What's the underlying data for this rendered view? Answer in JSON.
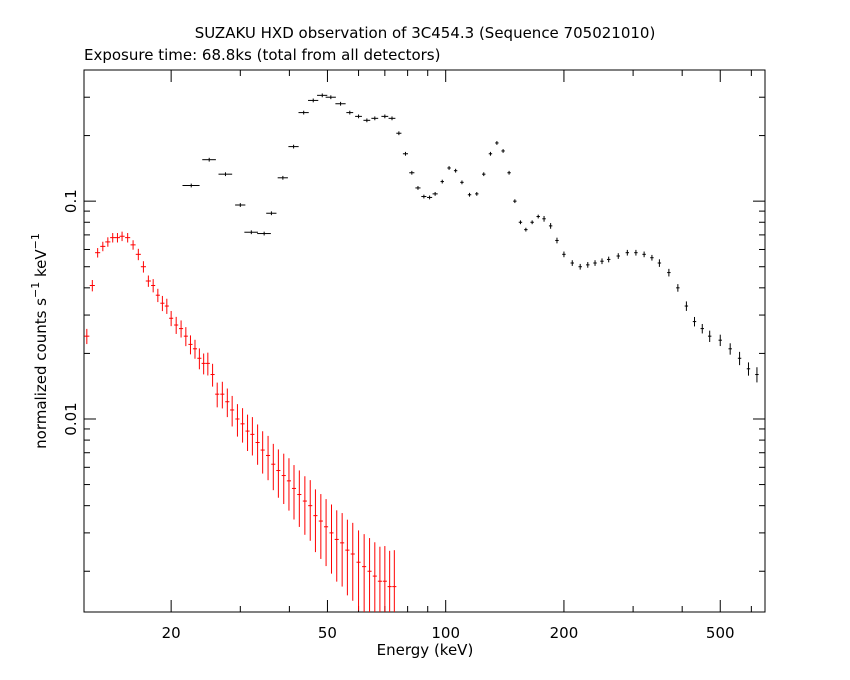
{
  "chart_data": {
    "type": "scatter",
    "title": "SUZAKU HXD observation of 3C454.3 (Sequence 705021010)",
    "subtitle": "Exposure time: 68.8ks (total from all detectors)",
    "xlabel": "Energy (keV)",
    "ylabel": {
      "text": "normalized counts s",
      "sup1": "−1",
      "mid": " keV",
      "sup2": "−1"
    },
    "x_scale": "log",
    "y_scale": "log",
    "xlim": [
      12,
      650
    ],
    "ylim": [
      0.0013,
      0.4
    ],
    "x_ticks": [
      20,
      50,
      100,
      200,
      500
    ],
    "x_tick_labels": [
      "20",
      "50",
      "100",
      "200",
      "500"
    ],
    "y_ticks": [
      0.01,
      0.1
    ],
    "y_tick_labels": [
      "0.01",
      "0.1"
    ],
    "grid": false,
    "colors": {
      "series_1": "#000000",
      "series_2": "#ff0000",
      "axes": "#000000"
    },
    "series": [
      {
        "color": "#000000",
        "x": [
          22.5,
          25,
          27.5,
          30,
          32,
          34.5,
          36,
          38.5,
          41,
          43.5,
          46,
          48.5,
          51,
          54,
          57,
          60,
          63,
          66,
          70,
          73,
          76,
          79,
          82,
          85,
          88,
          91,
          94,
          98,
          102,
          106,
          110,
          115,
          120,
          125,
          130,
          135,
          140,
          145,
          150,
          155,
          160,
          166,
          172,
          178,
          185,
          192,
          200,
          210,
          220,
          230,
          240,
          250,
          260,
          275,
          290,
          305,
          320,
          335,
          350,
          370,
          390,
          410,
          430,
          450,
          470,
          500,
          530,
          560,
          590,
          620
        ],
        "y": [
          0.118,
          0.155,
          0.133,
          0.096,
          0.072,
          0.071,
          0.088,
          0.128,
          0.178,
          0.255,
          0.29,
          0.306,
          0.3,
          0.28,
          0.255,
          0.245,
          0.235,
          0.24,
          0.245,
          0.24,
          0.205,
          0.165,
          0.135,
          0.115,
          0.105,
          0.104,
          0.108,
          0.123,
          0.142,
          0.138,
          0.122,
          0.107,
          0.108,
          0.133,
          0.165,
          0.185,
          0.17,
          0.135,
          0.1,
          0.08,
          0.074,
          0.08,
          0.085,
          0.083,
          0.077,
          0.066,
          0.057,
          0.052,
          0.05,
          0.051,
          0.052,
          0.053,
          0.054,
          0.056,
          0.058,
          0.058,
          0.057,
          0.055,
          0.052,
          0.047,
          0.04,
          0.033,
          0.028,
          0.026,
          0.024,
          0.023,
          0.021,
          0.019,
          0.017,
          0.016
        ],
        "xerr_rel": [
          0.05,
          0.04,
          0.04,
          0.03,
          0.04,
          0.04,
          0.03,
          0.03,
          0.03,
          0.03,
          0.03,
          0.03,
          0.03,
          0.03,
          0.02,
          0.02,
          0.02,
          0.02,
          0.02,
          0.02,
          0.015,
          0.015,
          0.015,
          0.015,
          0.015,
          0.015,
          0.015,
          0.01,
          0.01,
          0.01,
          0.01,
          0.01,
          0.01,
          0.01,
          0.01,
          0.01,
          0.01,
          0.01,
          0.01,
          0.01,
          0.01,
          0.01,
          0.01,
          0.01,
          0.01,
          0.01,
          0.01,
          0.01,
          0.01,
          0.01,
          0.01,
          0.01,
          0.01,
          0.01,
          0.01,
          0.01,
          0.01,
          0.01,
          0.01,
          0.01,
          0.01,
          0.01,
          0.01,
          0.01,
          0.01,
          0.01,
          0.01,
          0.01,
          0.01,
          0.01
        ],
        "yerr_rel": [
          0.02,
          0.02,
          0.02,
          0.02,
          0.02,
          0.02,
          0.02,
          0.02,
          0.02,
          0.02,
          0.02,
          0.02,
          0.02,
          0.02,
          0.02,
          0.02,
          0.02,
          0.02,
          0.02,
          0.02,
          0.02,
          0.02,
          0.02,
          0.02,
          0.02,
          0.02,
          0.02,
          0.02,
          0.02,
          0.02,
          0.02,
          0.02,
          0.02,
          0.02,
          0.02,
          0.02,
          0.02,
          0.02,
          0.02,
          0.02,
          0.02,
          0.02,
          0.02,
          0.03,
          0.03,
          0.03,
          0.03,
          0.03,
          0.03,
          0.03,
          0.03,
          0.03,
          0.03,
          0.03,
          0.03,
          0.03,
          0.03,
          0.03,
          0.04,
          0.04,
          0.04,
          0.05,
          0.05,
          0.05,
          0.06,
          0.06,
          0.06,
          0.07,
          0.07,
          0.08
        ]
      },
      {
        "color": "#ff0000",
        "x": [
          12.2,
          12.6,
          13.0,
          13.4,
          13.8,
          14.2,
          14.6,
          15.0,
          15.5,
          16.0,
          16.5,
          17.0,
          17.5,
          18.0,
          18.5,
          19.0,
          19.5,
          20.0,
          20.6,
          21.2,
          21.8,
          22.4,
          23.0,
          23.6,
          24.2,
          24.8,
          25.5,
          26.2,
          27.0,
          27.8,
          28.6,
          29.5,
          30.4,
          31.3,
          32.2,
          33.2,
          34.2,
          35.3,
          36.4,
          37.5,
          38.7,
          39.9,
          41.1,
          42.4,
          43.8,
          45.2,
          46.6,
          48.1,
          49.6,
          51.2,
          52.8,
          54.5,
          56.2,
          58.0,
          60.0,
          62.0,
          64.0,
          66.0,
          68.0,
          70.0,
          72.0,
          74.0
        ],
        "y": [
          0.024,
          0.041,
          0.058,
          0.062,
          0.065,
          0.068,
          0.068,
          0.069,
          0.068,
          0.063,
          0.057,
          0.05,
          0.043,
          0.041,
          0.037,
          0.034,
          0.033,
          0.029,
          0.027,
          0.026,
          0.024,
          0.022,
          0.021,
          0.019,
          0.018,
          0.018,
          0.016,
          0.013,
          0.013,
          0.012,
          0.011,
          0.01,
          0.0095,
          0.0088,
          0.0085,
          0.0078,
          0.0072,
          0.0068,
          0.0062,
          0.0058,
          0.0055,
          0.0052,
          0.0048,
          0.0045,
          0.0042,
          0.004,
          0.0036,
          0.0034,
          0.0032,
          0.003,
          0.0028,
          0.0027,
          0.0025,
          0.0024,
          0.0022,
          0.0021,
          0.002,
          0.0019,
          0.0018,
          0.0018,
          0.0017,
          0.0017
        ],
        "xerr_rel": [
          0.015,
          0.015,
          0.015,
          0.015,
          0.015,
          0.015,
          0.015,
          0.015,
          0.015,
          0.015,
          0.015,
          0.015,
          0.015,
          0.012,
          0.012,
          0.012,
          0.012,
          0.012,
          0.012,
          0.012,
          0.012,
          0.012,
          0.012,
          0.012,
          0.012,
          0.012,
          0.012,
          0.012,
          0.012,
          0.012,
          0.012,
          0.012,
          0.012,
          0.012,
          0.012,
          0.012,
          0.012,
          0.012,
          0.012,
          0.012,
          0.012,
          0.012,
          0.012,
          0.012,
          0.012,
          0.012,
          0.012,
          0.012,
          0.012,
          0.012,
          0.012,
          0.012,
          0.012,
          0.012,
          0.012,
          0.012,
          0.012,
          0.012,
          0.012,
          0.012,
          0.012,
          0.012
        ],
        "yerr_rel": [
          0.08,
          0.06,
          0.05,
          0.05,
          0.05,
          0.05,
          0.05,
          0.05,
          0.05,
          0.05,
          0.06,
          0.06,
          0.06,
          0.07,
          0.07,
          0.08,
          0.08,
          0.08,
          0.09,
          0.09,
          0.1,
          0.1,
          0.1,
          0.11,
          0.11,
          0.12,
          0.12,
          0.13,
          0.14,
          0.15,
          0.16,
          0.17,
          0.18,
          0.19,
          0.2,
          0.21,
          0.22,
          0.23,
          0.24,
          0.25,
          0.26,
          0.27,
          0.28,
          0.29,
          0.3,
          0.31,
          0.32,
          0.33,
          0.34,
          0.35,
          0.36,
          0.37,
          0.38,
          0.39,
          0.4,
          0.41,
          0.42,
          0.43,
          0.44,
          0.45,
          0.46,
          0.47
        ]
      }
    ]
  }
}
